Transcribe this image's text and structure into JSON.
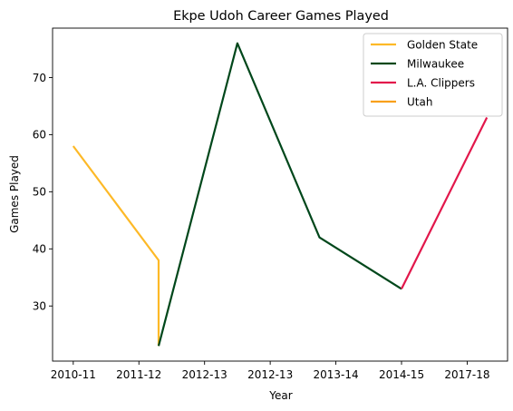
{
  "chart_data": {
    "type": "line",
    "title": "Ekpe Udoh Career Games Played",
    "xlabel": "Year",
    "ylabel": "Games Played",
    "categories": [
      "2010-11",
      "2011-12",
      "2012-13",
      "2012-13",
      "2013-14",
      "2014-15",
      "2017-18"
    ],
    "ylim": [
      20.35,
      78.65
    ],
    "yticks": [
      30,
      40,
      50,
      60,
      70
    ],
    "grid": false,
    "legend_position": "top-right",
    "series": [
      {
        "name": "Golden State",
        "color": "#FDB927",
        "points": [
          {
            "x": 0,
            "y": 58
          },
          {
            "x": 1.3,
            "y": 38
          },
          {
            "x": 1.3,
            "y": 23
          }
        ]
      },
      {
        "name": "Milwaukee",
        "color": "#00471B",
        "points": [
          {
            "x": 1.3,
            "y": 23
          },
          {
            "x": 2.5,
            "y": 76
          },
          {
            "x": 3.75,
            "y": 42
          },
          {
            "x": 5.0,
            "y": 33
          }
        ]
      },
      {
        "name": "L.A. Clippers",
        "color": "#E2174B",
        "points": [
          {
            "x": 5.0,
            "y": 33
          },
          {
            "x": 6.3,
            "y": 63
          }
        ]
      },
      {
        "name": "Utah",
        "color": "#F9A01B",
        "points": []
      }
    ]
  }
}
